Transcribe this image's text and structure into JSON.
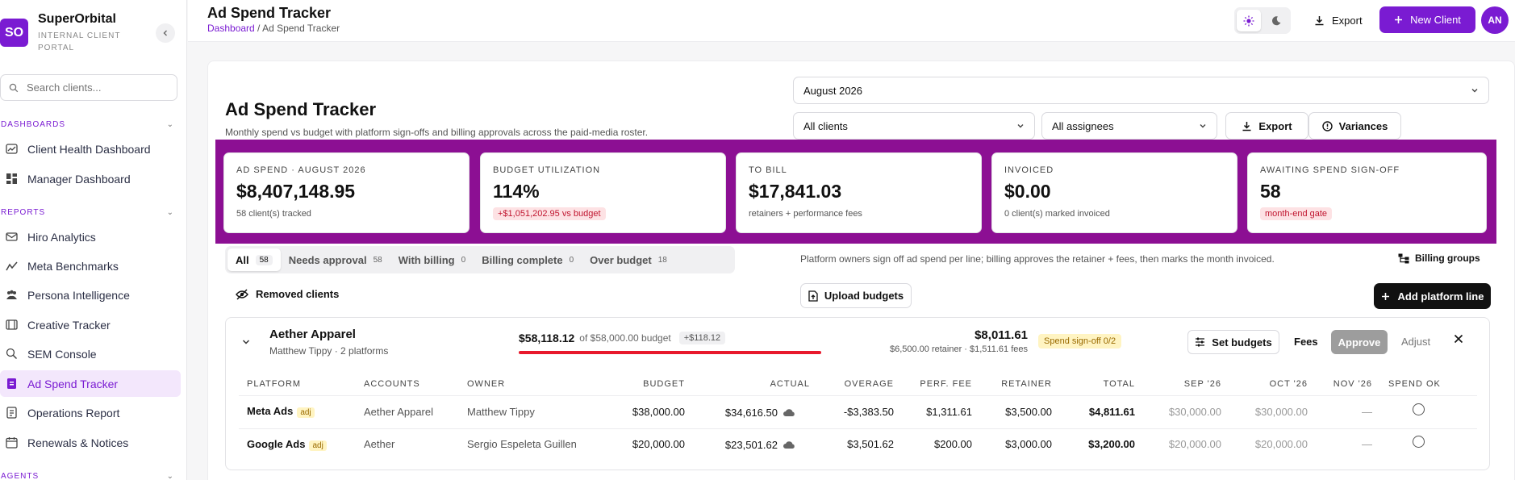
{
  "sidebar": {
    "logo": "SO",
    "brand": "SuperOrbital",
    "brand_sub": "INTERNAL CLIENT PORTAL",
    "search_placeholder": "Search clients...",
    "sections": [
      {
        "label": "DASHBOARDS",
        "items": [
          "Client Health Dashboard",
          "Manager Dashboard"
        ]
      },
      {
        "label": "REPORTS",
        "items": [
          "Hiro Analytics",
          "Meta Benchmarks",
          "Persona Intelligence",
          "Creative Tracker",
          "SEM Console",
          "Ad Spend Tracker",
          "Operations Report",
          "Renewals & Notices"
        ]
      },
      {
        "label": "AGENTS",
        "items": []
      }
    ],
    "active_item": "Ad Spend Tracker"
  },
  "header": {
    "title": "Ad Spend Tracker",
    "breadcrumb_link": "Dashboard",
    "breadcrumb_sep": " / ",
    "breadcrumb_current": "Ad Spend Tracker",
    "export_label": "Export",
    "new_client_label": "New Client",
    "avatar": "AN"
  },
  "page": {
    "title": "Ad Spend Tracker",
    "subtitle": "Monthly spend vs budget with platform sign-offs and billing approvals across the paid-media roster.",
    "month": "August 2026",
    "clients_filter": "All clients",
    "assignees_filter": "All assignees",
    "export_label": "Export",
    "variances_label": "Variances"
  },
  "kpis": [
    {
      "label": "AD SPEND · AUGUST 2026",
      "value": "$8,407,148.95",
      "note": "58 client(s) tracked",
      "pill": ""
    },
    {
      "label": "BUDGET UTILIZATION",
      "value": "114%",
      "note": "",
      "pill": "+$1,051,202.95 vs budget"
    },
    {
      "label": "TO BILL",
      "value": "$17,841.03",
      "note": "retainers + performance fees",
      "pill": ""
    },
    {
      "label": "INVOICED",
      "value": "$0.00",
      "note": "0 client(s) marked invoiced",
      "pill": ""
    },
    {
      "label": "AWAITING SPEND SIGN-OFF",
      "value": "58",
      "note": "",
      "pill": "month-end gate"
    }
  ],
  "tabs": [
    {
      "label": "All",
      "count": "58"
    },
    {
      "label": "Needs approval",
      "count": "58"
    },
    {
      "label": "With billing",
      "count": "0"
    },
    {
      "label": "Billing complete",
      "count": "0"
    },
    {
      "label": "Over budget",
      "count": "18"
    }
  ],
  "hint": "Platform owners sign off ad spend per line; billing approves the retainer + fees, then marks the month invoiced.",
  "billing_groups_label": "Billing groups",
  "removed_clients_label": "Removed clients",
  "upload_budgets_label": "Upload budgets",
  "add_platform_line_label": "Add platform line",
  "client": {
    "name": "Aether Apparel",
    "meta": "Matthew Tippy · 2 platforms",
    "spend": "$58,118.12",
    "of_budget": "of $58,000.00 budget",
    "over": "+$118.12",
    "bill_total": "$8,011.61",
    "bill_sub": "$6,500.00 retainer · $1,511.61 fees",
    "signoff": "Spend sign-off 0/2",
    "set_budgets_label": "Set budgets",
    "fees_label": "Fees",
    "approve_label": "Approve",
    "adjust_label": "Adjust",
    "columns": [
      "PLATFORM",
      "ACCOUNTS",
      "OWNER",
      "BUDGET",
      "ACTUAL",
      "OVERAGE",
      "PERF. FEE",
      "RETAINER",
      "TOTAL",
      "SEP '26",
      "OCT '26",
      "NOV '26",
      "SPEND OK"
    ],
    "rows": [
      {
        "platform": "Meta Ads",
        "tag": "adj",
        "account": "Aether Apparel",
        "owner": "Matthew Tippy",
        "budget": "$38,000.00",
        "actual": "$34,616.50",
        "overage": "-$3,383.50",
        "perf_fee": "$1,311.61",
        "retainer": "$3,500.00",
        "total": "$4,811.61",
        "sep": "$30,000.00",
        "oct": "$30,000.00",
        "nov": "—"
      },
      {
        "platform": "Google Ads",
        "tag": "adj",
        "account": "Aether",
        "owner": "Sergio Espeleta Guillen",
        "budget": "$20,000.00",
        "actual": "$23,501.62",
        "overage": "$3,501.62",
        "perf_fee": "$200.00",
        "retainer": "$3,000.00",
        "total": "$3,200.00",
        "sep": "$20,000.00",
        "oct": "$20,000.00",
        "nov": "—"
      }
    ]
  },
  "colors": {
    "accent": "#7a1bd2",
    "highlight": "#8c0f93",
    "danger": "#e8192c"
  }
}
